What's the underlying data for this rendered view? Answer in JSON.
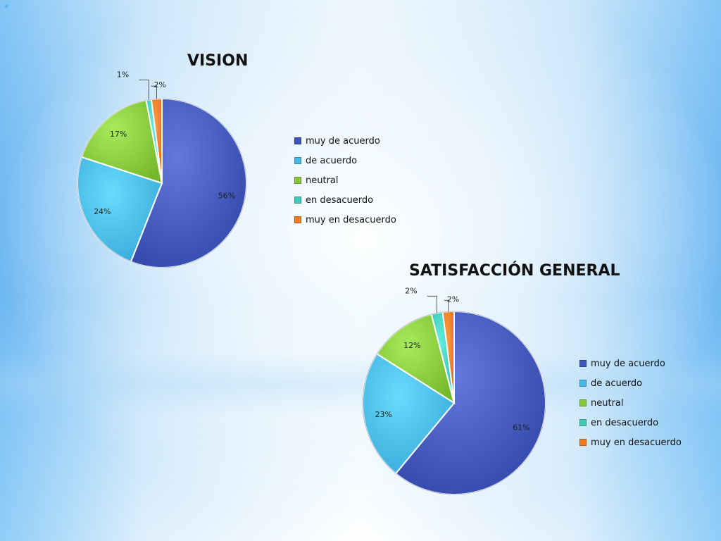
{
  "decor": {
    "asterisk": "*"
  },
  "chart_data": [
    {
      "type": "pie",
      "title": "VISION",
      "categories": [
        "muy de acuerdo",
        "de acuerdo",
        "neutral",
        "en desacuerdo",
        "muy en desacuerdo"
      ],
      "values": [
        56,
        24,
        17,
        1,
        2
      ],
      "labels": [
        "56%",
        "24%",
        "17%",
        "1%",
        "2%"
      ],
      "colors": [
        "#3f56b8",
        "#45b8e6",
        "#84c83a",
        "#3ec9b8",
        "#f07a1e"
      ],
      "legend": "right"
    },
    {
      "type": "pie",
      "title": "SATISFACCIÓN GENERAL",
      "categories": [
        "muy de acuerdo",
        "de acuerdo",
        "neutral",
        "en desacuerdo",
        "muy en desacuerdo"
      ],
      "values": [
        61,
        23,
        12,
        2,
        2
      ],
      "labels": [
        "61%",
        "23%",
        "12%",
        "2%",
        "2%"
      ],
      "colors": [
        "#3f56b8",
        "#45b8e6",
        "#84c83a",
        "#3ec9b8",
        "#f07a1e"
      ],
      "legend": "right"
    }
  ]
}
